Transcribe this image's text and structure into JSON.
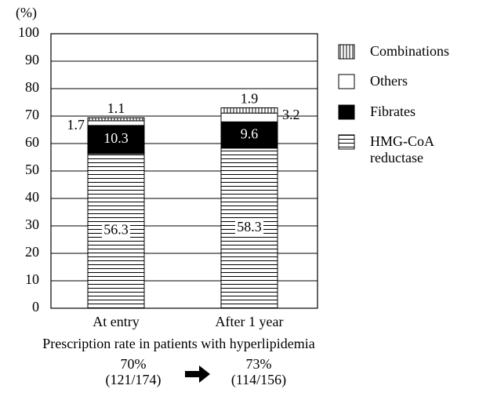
{
  "chart_data": {
    "type": "stacked-bar",
    "y_label": "(%)",
    "categories": [
      "At entry",
      "After 1 year"
    ],
    "series": [
      {
        "name": "HMG-CoA reductase",
        "color": "#000000",
        "pattern": "horizontal",
        "values": [
          56.3,
          58.3
        ]
      },
      {
        "name": "Fibrates",
        "color": "#000000",
        "pattern": "solid",
        "values": [
          10.3,
          9.6
        ]
      },
      {
        "name": "Others",
        "color": "#ffffff",
        "pattern": "solid",
        "values": [
          1.7,
          3.2
        ]
      },
      {
        "name": "Combinations",
        "color": "#000000",
        "pattern": "vertical",
        "values": [
          1.1,
          1.9
        ]
      }
    ],
    "ylim": [
      0,
      100
    ],
    "yticks": [
      0,
      10,
      20,
      30,
      40,
      50,
      60,
      70,
      80,
      90,
      100
    ],
    "grid": true,
    "note": "Prescription rate in patients with hyperlipidemia",
    "rates": [
      {
        "value": "70%",
        "count": "(121/174)"
      },
      {
        "value": "73%",
        "count": "(114/156)"
      }
    ]
  }
}
